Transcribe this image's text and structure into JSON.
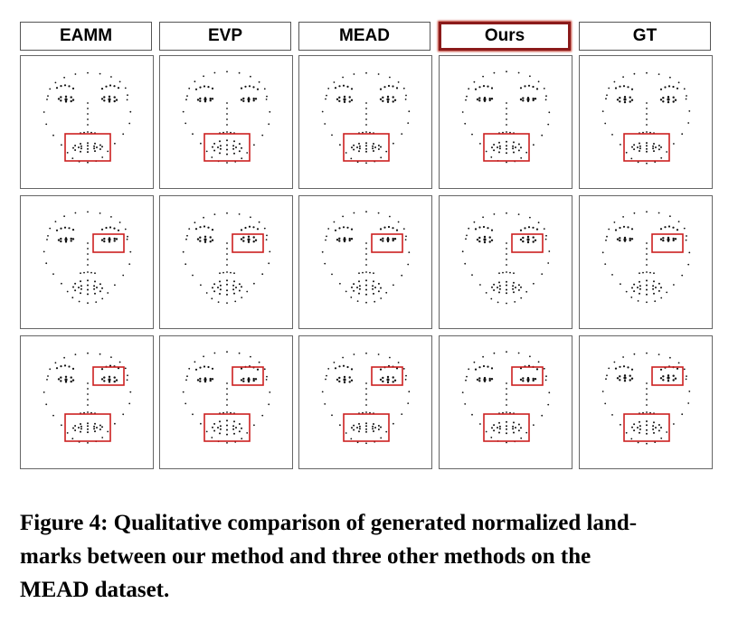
{
  "figure": {
    "columns": [
      "EAMM",
      "EVP",
      "MEAD",
      "Ours",
      "GT"
    ],
    "highlighted_column": "Ours",
    "rows": [
      {
        "mouth_box": true,
        "eye_box": false
      },
      {
        "mouth_box": false,
        "eye_box": true
      },
      {
        "mouth_box": true,
        "eye_box": true
      }
    ],
    "highlight_color": "#cc2020",
    "dot_color": "#111111"
  },
  "caption": {
    "line1": "Figure 4: Qualitative comparison of generated normalized land-",
    "line2": "marks between our method and three other methods on the",
    "line3": "MEAD dataset."
  }
}
